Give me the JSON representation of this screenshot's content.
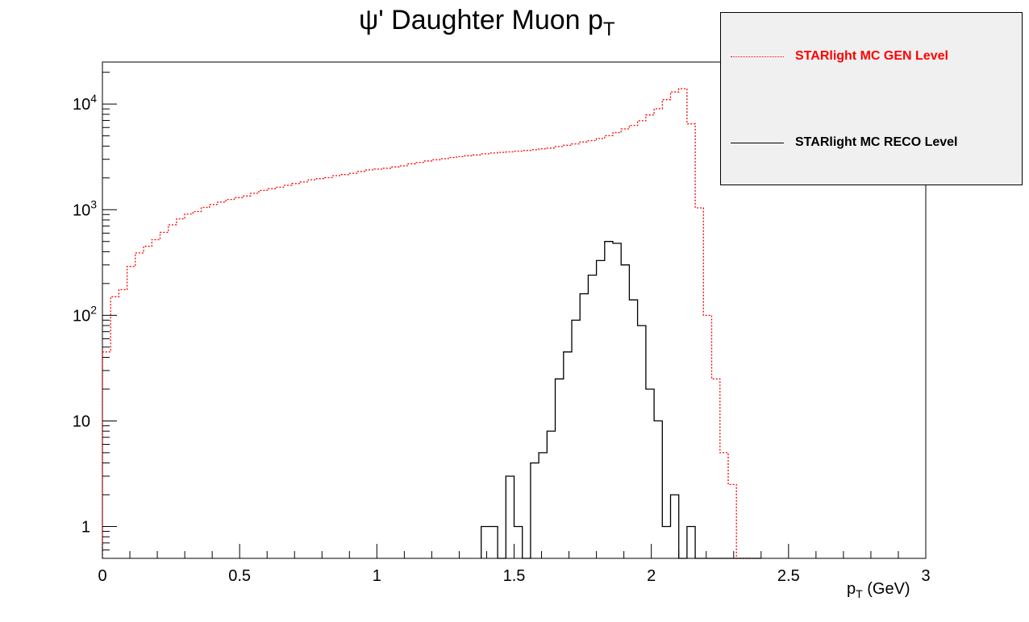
{
  "chart_data": {
    "type": "histogram-step",
    "title": {
      "prefix": "ψ' Daughter Muon p",
      "sub": "T"
    },
    "xlabel": {
      "main": "p",
      "sub": "T",
      "unit": " (GeV)"
    },
    "ylabel": "",
    "xlim": [
      0,
      3
    ],
    "ylim": [
      0.5,
      25000
    ],
    "yscale": "log",
    "bin_width": 0.03,
    "x_ticks": [
      {
        "v": 0,
        "label": "0"
      },
      {
        "v": 0.5,
        "label": "0.5"
      },
      {
        "v": 1,
        "label": "1"
      },
      {
        "v": 1.5,
        "label": "1.5"
      },
      {
        "v": 2,
        "label": "2"
      },
      {
        "v": 2.5,
        "label": "2.5"
      },
      {
        "v": 3,
        "label": "3"
      }
    ],
    "y_ticks": [
      {
        "v": 1,
        "base": "1",
        "exp": ""
      },
      {
        "v": 10,
        "base": "10",
        "exp": ""
      },
      {
        "v": 100,
        "base": "10",
        "exp": "2"
      },
      {
        "v": 1000,
        "base": "10",
        "exp": "3"
      },
      {
        "v": 10000,
        "base": "10",
        "exp": "4"
      }
    ],
    "grid": false,
    "legend_position": "top-right",
    "series": [
      {
        "name": "STARlight MC GEN Level",
        "color": "#ff0000",
        "dash": true,
        "values": [
          45,
          150,
          175,
          290,
          390,
          450,
          520,
          610,
          720,
          820,
          910,
          960,
          1050,
          1120,
          1180,
          1250,
          1300,
          1350,
          1430,
          1520,
          1580,
          1630,
          1700,
          1770,
          1830,
          1920,
          1970,
          2010,
          2100,
          2150,
          2210,
          2300,
          2380,
          2420,
          2470,
          2540,
          2600,
          2720,
          2800,
          2890,
          2970,
          3040,
          3120,
          3180,
          3240,
          3300,
          3380,
          3440,
          3490,
          3530,
          3580,
          3640,
          3700,
          3770,
          3830,
          3960,
          4070,
          4200,
          4380,
          4510,
          4720,
          5020,
          5370,
          5820,
          6290,
          6950,
          7880,
          9040,
          11000,
          13000,
          14000,
          6500,
          1040,
          100,
          25,
          5,
          2.5,
          0,
          0,
          0
        ]
      },
      {
        "name": "STARlight MC RECO Level",
        "color": "#000000",
        "dash": false,
        "values": [
          0,
          0,
          0,
          0,
          0,
          0,
          0,
          0,
          0,
          0,
          0,
          0,
          0,
          0,
          0,
          0,
          0,
          0,
          0,
          0,
          0,
          0,
          0,
          0,
          0,
          0,
          0,
          0,
          0,
          0,
          0,
          0,
          0,
          0,
          0,
          0,
          0,
          0,
          0,
          0,
          0,
          0,
          0,
          0,
          0,
          0,
          1,
          1,
          0,
          3,
          1,
          0,
          4,
          5,
          8,
          25,
          45,
          90,
          160,
          240,
          330,
          500,
          480,
          300,
          140,
          80,
          20,
          10,
          1,
          2,
          0,
          1,
          0,
          0,
          0,
          0,
          0,
          0,
          0,
          0
        ]
      }
    ]
  }
}
